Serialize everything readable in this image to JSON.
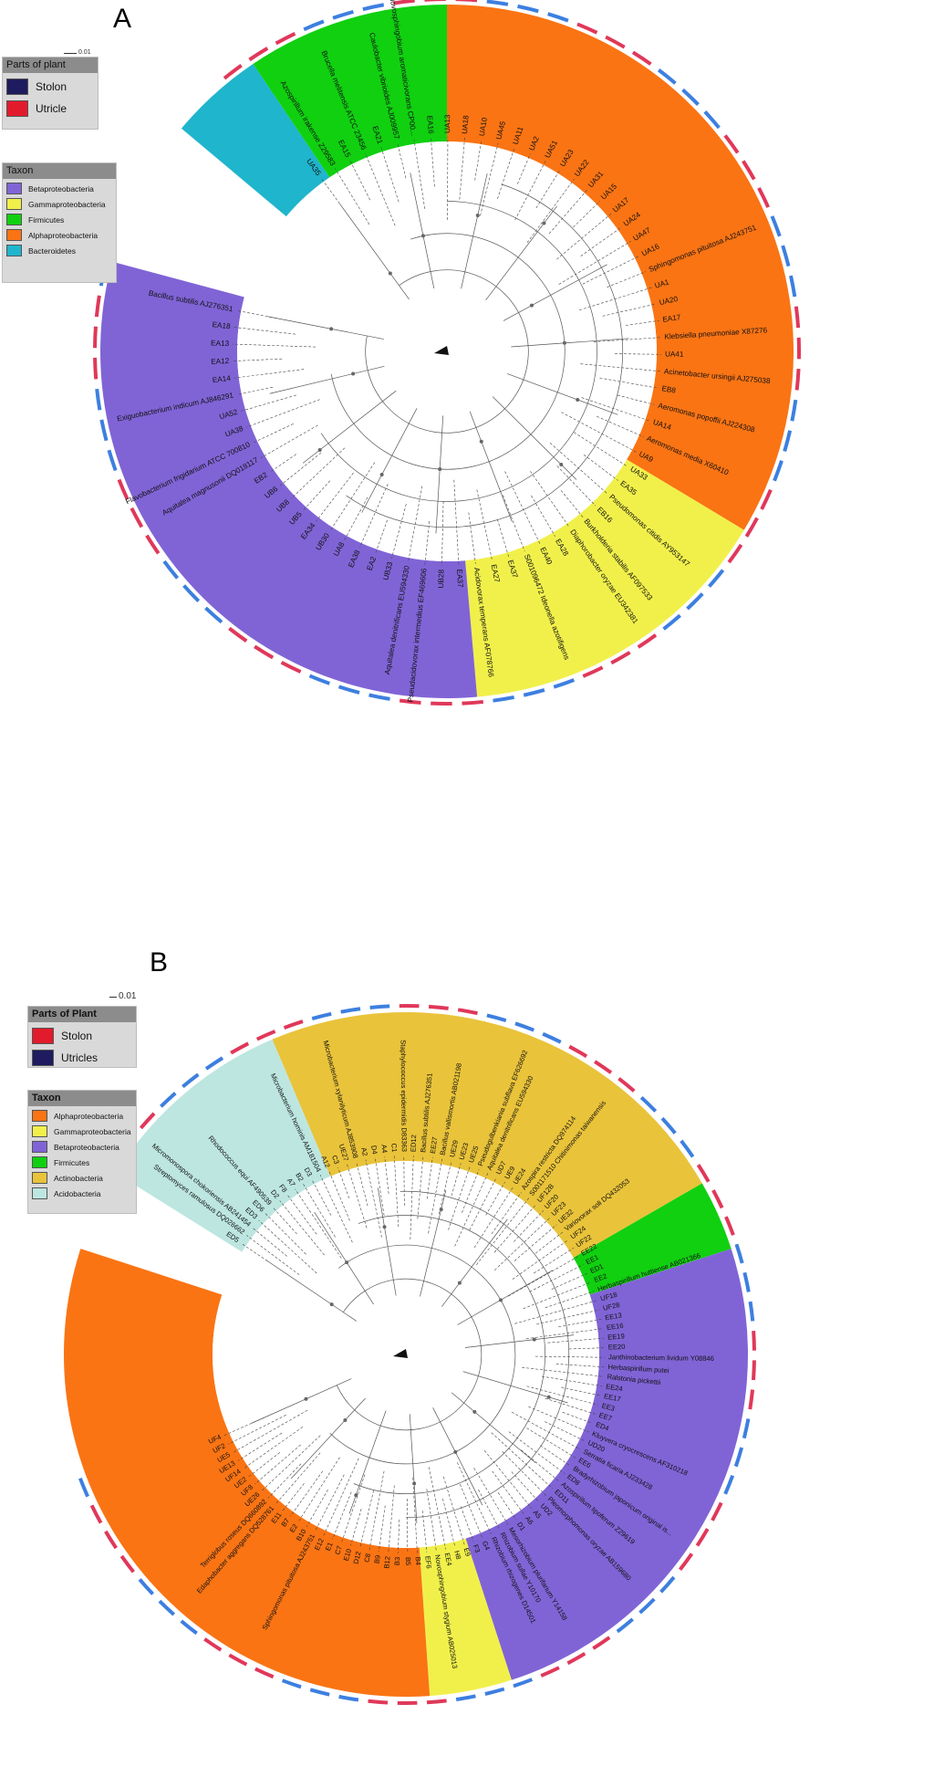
{
  "panel_a": {
    "letter": "A",
    "scale_bar_label": "0.01",
    "parts_legend": {
      "title": "Parts of plant",
      "items": [
        {
          "label": "Stolon",
          "color": "#1e1b5e"
        },
        {
          "label": "Utricle",
          "color": "#e21b2c"
        }
      ]
    },
    "taxon_legend": {
      "title": "Taxon",
      "items": [
        {
          "label": "Betaproteobacteria",
          "color": "#8064d6"
        },
        {
          "label": "Gammaproteobacteria",
          "color": "#f1f04b"
        },
        {
          "label": "Firmicutes",
          "color": "#10d010"
        },
        {
          "label": "Alphaproteobacteria",
          "color": "#fa7414"
        },
        {
          "label": "Bacteroidetes",
          "color": "#1fb5cc"
        }
      ]
    },
    "leaves": [
      "UA35",
      "Azospirillum irakense Z29583",
      "EA15",
      "Brucella melitensis ATCC 23456",
      "EA21",
      "Caulobacter vibrioides AJ009957",
      "Novosphingobium aromaticivorans CP00...",
      "EA16",
      "UA13",
      "UA18",
      "UA10",
      "UA45",
      "UA11",
      "UA2",
      "UA51",
      "UA23",
      "UA22",
      "UA31",
      "UA15",
      "UA17",
      "UA24",
      "UA47",
      "UA16",
      "Sphingomonas pituitosa AJ243751",
      "UA1",
      "UA20",
      "EA17",
      "Klebsiella pneumoniae X87276",
      "UA41",
      "Acinetobacter ursingii AJ275038",
      "EB8",
      "Aeromonas popoffii AJ224308",
      "UA14",
      "Aeromonas media X60410",
      "UA9",
      "UA33",
      "EA35",
      "Pseudomonas citidis AY953147",
      "EB16",
      "Burkholderia stabilis AF097533",
      "Diaphorobacter oryzae EU342381",
      "EA28",
      "EA40",
      "S001096472 Ideonella azotifigens",
      "EA37",
      "EA27",
      "Acidovorax temperans AF078766",
      "EA37",
      "UB28",
      "Pseudacidovorax intermedius EF469606",
      "Aquitalea denitrificans EU594330",
      "UB33",
      "EA2",
      "EA38",
      "UA8",
      "UB30",
      "EA34",
      "UB5",
      "UB8",
      "UB6",
      "EB2",
      "Aquitalea magnusonii DQ018117",
      "Flavobacterium frigidarium ATCC 700810",
      "UA38",
      "UA52",
      "Exiguobacterium indicum AJ846291",
      "EA14",
      "EA12",
      "EA13",
      "EA18",
      "Bacillus subtilis AJ276351"
    ]
  },
  "panel_b": {
    "letter": "B",
    "scale_bar_label": "0.01",
    "parts_legend": {
      "title": "Parts of Plant",
      "items": [
        {
          "label": "Stolon",
          "color": "#e21b2c"
        },
        {
          "label": "Utricles",
          "color": "#1e1b5e"
        }
      ]
    },
    "taxon_legend": {
      "title": "Taxon",
      "items": [
        {
          "label": "Alphaproteobacteria",
          "color": "#fa7414"
        },
        {
          "label": "Gammaproteobacteria",
          "color": "#f1f04b"
        },
        {
          "label": "Betaproteobacteria",
          "color": "#8064d6"
        },
        {
          "label": "Firmicutes",
          "color": "#10d010"
        },
        {
          "label": "Actinobacteria",
          "color": "#e9c33a"
        },
        {
          "label": "Acidobacteria",
          "color": "#bde6e0"
        }
      ]
    },
    "leaves": [
      "ED5",
      "Streptomyces ramulosus DQ026662",
      "Micromonospora chokoriensis AB241454",
      "ED3",
      "ED6",
      "Rhodococcus equi AF490539",
      "D2",
      "F8",
      "A7",
      "B2",
      "D3",
      "Microbacterium hominis AM181504",
      "A12",
      "C3",
      "UE27",
      "Microbacterium xylanilyticum AJ853908",
      "A2",
      "D4",
      "A4",
      "C1",
      "Staphylococcus epidermidis D83363",
      "ED12",
      "Bacillus subtilis AJ276351",
      "EE27",
      "Bacillus vallismortis AB021198",
      "UE29",
      "UE23",
      "UE25",
      "Pseudogulbenkiania subflava EF626692",
      "Aquitalea denitrificans EU594330",
      "UD7",
      "UE9",
      "UE24",
      "Azospira restricta DQ974114",
      "S001171510 Chitinimonas taiwanensis",
      "UF12B",
      "UF20",
      "UF23",
      "UE32",
      "Variovorax soli DQ432053",
      "UF24",
      "UF22",
      "EE22",
      "EE1",
      "ED1",
      "EE2",
      "Herbaspirillum huttiense AB021366",
      "UF18",
      "UF28",
      "EE13",
      "EE16",
      "EE19",
      "EE20",
      "Janthinobacterium lividum Y08846",
      "Herbaspirillum putei",
      "Ralstonia pickettii",
      "EE24",
      "EE17",
      "EE3",
      "EE7",
      "ED4",
      "Kluyvera cryocrescens AF310218",
      "UD20",
      "Serratia ficaria AJ233428",
      "EE6",
      "Bradyrhizobium japonicum original is...",
      "ED8",
      "Azospirillum lipoferum Z29619",
      "ED11",
      "Pleomorphomonas oryzae AB159680",
      "UD2",
      "A5",
      "A6",
      "D1",
      "Mesorhizobium plurifarium Y14158",
      "Rhizobium sullae Y10170",
      "Rhizobium rhizogenes D14501",
      "G4",
      "F3",
      "E9",
      "H8",
      "EE4",
      "Novosphingobium stygium AB025013",
      "EF6",
      "B4",
      "B5",
      "B3",
      "B12",
      "B9",
      "C8",
      "D12",
      "E10",
      "C7",
      "E1",
      "E12",
      "Sphingomonas pituitosa AJ243751",
      "B10",
      "E2",
      "B7",
      "E11",
      "Edaphobacter aggregans DQ528761",
      "Terriglobus roseus DQ660892",
      "UE26",
      "UF8",
      "UE2",
      "UF14",
      "UE13",
      "UE5",
      "UF2",
      "UF4"
    ]
  }
}
